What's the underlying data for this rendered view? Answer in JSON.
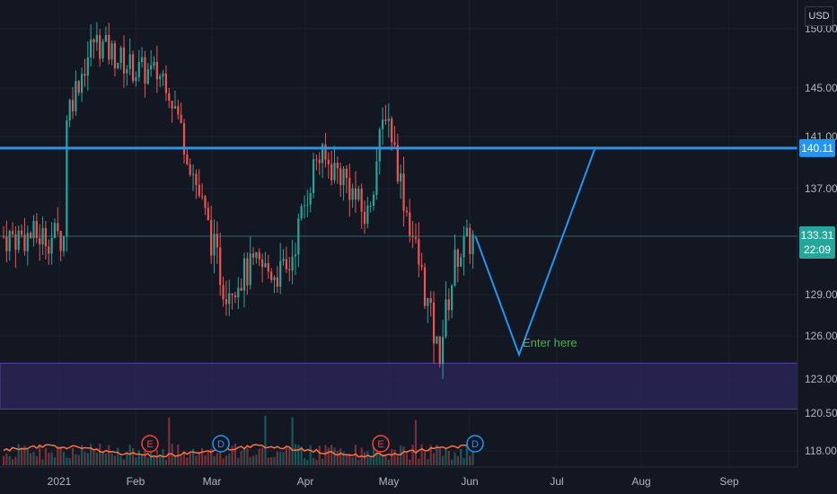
{
  "currency": "USD",
  "colors": {
    "background": "#131722",
    "up": "#26a69a",
    "down": "#ef5350",
    "resistance": "#2196f3",
    "projection": "#2196f3",
    "zone_fill": "#2a2456",
    "zone_border": "#5b3fa6",
    "annotation": "#4caf50",
    "volume_ma": "#ff7043",
    "grid": "#1e222d"
  },
  "price_axis": {
    "ticks": [
      "150.00",
      "145.00",
      "141.00",
      "137.00",
      "133.31",
      "129.00",
      "126.00",
      "123.00",
      "120.50",
      "118.00"
    ],
    "tick_values": [
      150,
      145,
      141,
      137,
      129,
      126,
      123,
      120.5,
      118
    ],
    "resistance_label": "140.11",
    "current_price": "133.31",
    "countdown": "22:09"
  },
  "time_axis": {
    "labels": [
      "2021",
      "Feb",
      "Mar",
      "Apr",
      "May",
      "Jun",
      "Jul",
      "Aug",
      "Sep"
    ]
  },
  "events": [
    {
      "letter": "E",
      "kind": "earnings",
      "month": "Feb"
    },
    {
      "letter": "D",
      "kind": "dividend",
      "month": "Mar"
    },
    {
      "letter": "E",
      "kind": "earnings",
      "month": "May"
    },
    {
      "letter": "D",
      "kind": "dividend",
      "month": "Jun"
    }
  ],
  "annotation": {
    "text": "Enter here"
  },
  "chart_data": {
    "type": "candlestick",
    "resistance_level": 140.11,
    "support_zone": [
      120.8,
      124.1
    ],
    "current_price": 133.31,
    "projection_path": [
      {
        "date": "2021-06-03",
        "price": 133.3
      },
      {
        "date": "2021-06-18",
        "price": 124.7
      },
      {
        "date": "2021-07-15",
        "price": 140.1
      }
    ],
    "closes": [
      {
        "date": "2021-01-04",
        "price": 143.0
      },
      {
        "date": "2021-01-15",
        "price": 149.0
      },
      {
        "date": "2021-02-01",
        "price": 146.5
      },
      {
        "date": "2021-02-12",
        "price": 146.0
      },
      {
        "date": "2021-02-25",
        "price": 136.0
      },
      {
        "date": "2021-03-05",
        "price": 129.5
      },
      {
        "date": "2021-03-15",
        "price": 131.0
      },
      {
        "date": "2021-03-26",
        "price": 130.5
      },
      {
        "date": "2021-04-05",
        "price": 139.5
      },
      {
        "date": "2021-04-15",
        "price": 138.0
      },
      {
        "date": "2021-04-23",
        "price": 134.5
      },
      {
        "date": "2021-04-30",
        "price": 143.5
      },
      {
        "date": "2021-05-07",
        "price": 136.0
      },
      {
        "date": "2021-05-14",
        "price": 130.0
      },
      {
        "date": "2021-05-20",
        "price": 124.5
      },
      {
        "date": "2021-05-27",
        "price": 132.0
      },
      {
        "date": "2021-06-03",
        "price": 133.3
      }
    ]
  }
}
